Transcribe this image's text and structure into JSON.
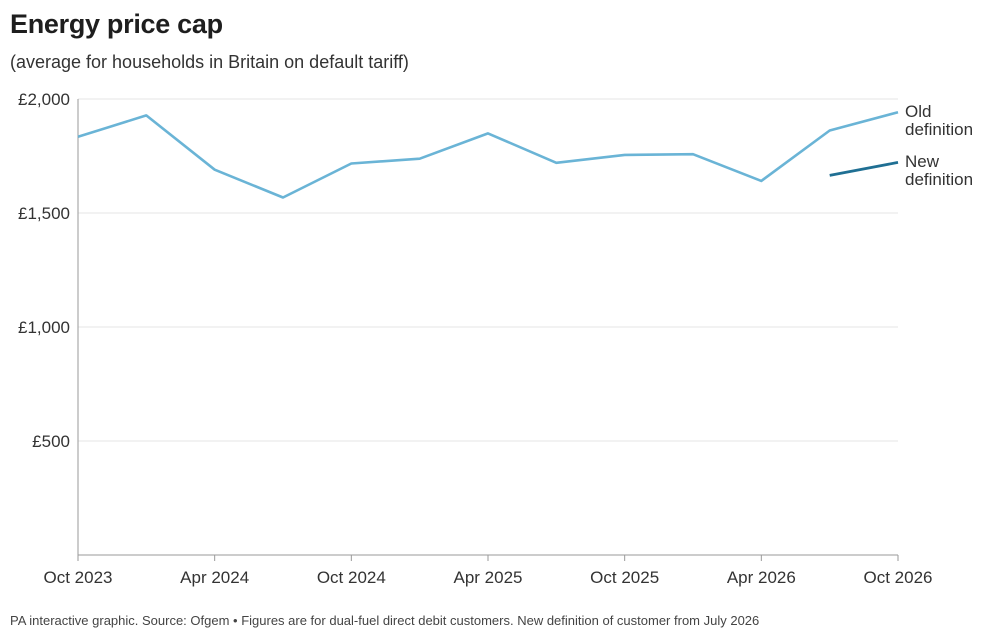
{
  "header": {
    "title": "Energy price cap",
    "subtitle": "(average for households in Britain on default tariff)"
  },
  "footer": {
    "note": "PA interactive graphic. Source: Ofgem • Figures are for dual-fuel direct debit customers. New definition of customer from July 2026"
  },
  "colors": {
    "old_definition": "#6ab4d6",
    "new_definition": "#1f6f93",
    "gridline": "#e4e4e4",
    "axis": "#9a9a9a"
  },
  "chart_data": {
    "type": "line",
    "title": "Energy price cap",
    "subtitle": "(average for households in Britain on default tariff)",
    "x_ticks": [
      "Oct 2023",
      "Apr 2024",
      "Oct 2024",
      "Apr 2025",
      "Oct 2025",
      "Apr 2026",
      "Oct 2026"
    ],
    "y_ticks": [
      "£500",
      "£1,000",
      "£1,500",
      "£2,000"
    ],
    "y_tick_values": [
      500,
      1000,
      1500,
      2000
    ],
    "ylim": [
      0,
      2000
    ],
    "grid": true,
    "legend": "inline labels at right end of lines",
    "series": [
      {
        "name": "Old definition",
        "label_lines": [
          "Old",
          "definition"
        ],
        "color": "#6ab4d6",
        "points": [
          {
            "x": "Oct 2023",
            "y": 1834
          },
          {
            "x": "Jan 2024",
            "y": 1928
          },
          {
            "x": "Apr 2024",
            "y": 1690
          },
          {
            "x": "Jul 2024",
            "y": 1568
          },
          {
            "x": "Oct 2024",
            "y": 1717
          },
          {
            "x": "Jan 2025",
            "y": 1738
          },
          {
            "x": "Apr 2025",
            "y": 1849
          },
          {
            "x": "Jul 2025",
            "y": 1720
          },
          {
            "x": "Oct 2025",
            "y": 1755
          },
          {
            "x": "Jan 2026",
            "y": 1758
          },
          {
            "x": "Apr 2026",
            "y": 1641
          },
          {
            "x": "Jul 2026",
            "y": 1862
          },
          {
            "x": "Oct 2026",
            "y": 1942
          }
        ]
      },
      {
        "name": "New definition",
        "label_lines": [
          "New",
          "definition"
        ],
        "color": "#1f6f93",
        "points": [
          {
            "x": "Jul 2026",
            "y": 1665
          },
          {
            "x": "Oct 2026",
            "y": 1722
          }
        ]
      }
    ]
  }
}
